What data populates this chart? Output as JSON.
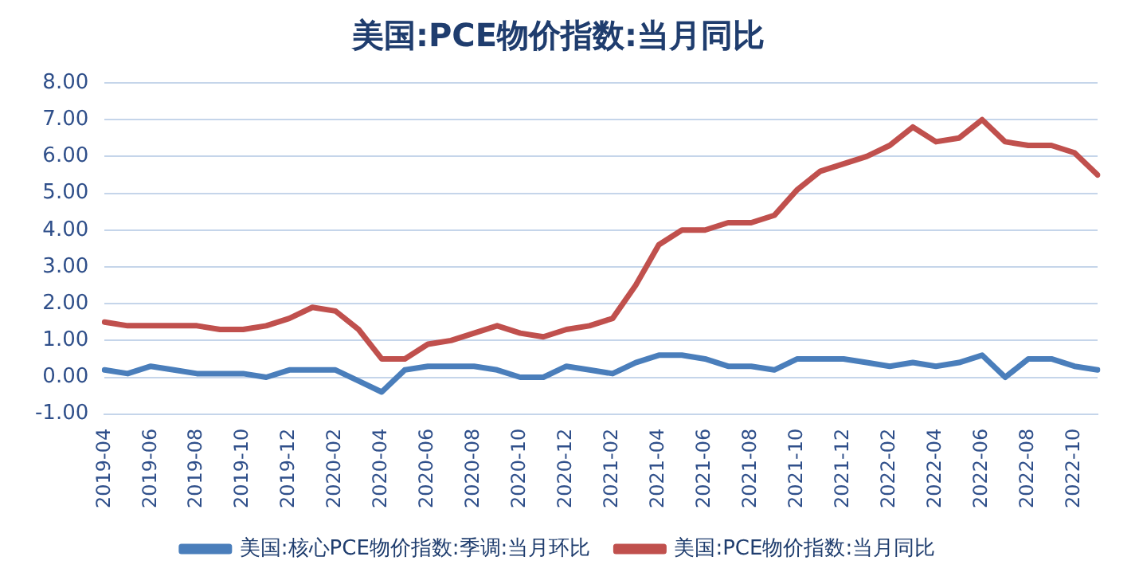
{
  "chart_data": {
    "type": "line",
    "title": "美国:PCE物价指数:当月同比",
    "categories": [
      "2019-04",
      null,
      "2019-06",
      null,
      "2019-08",
      null,
      "2019-10",
      null,
      "2019-12",
      null,
      "2020-02",
      null,
      "2020-04",
      null,
      "2020-06",
      null,
      "2020-08",
      null,
      "2020-10",
      null,
      "2020-12",
      null,
      "2021-02",
      null,
      "2021-04",
      null,
      "2021-06",
      null,
      "2021-08",
      null,
      "2021-10",
      null,
      "2021-12",
      null,
      "2022-02",
      null,
      "2022-04",
      null,
      "2022-06",
      null,
      "2022-08",
      null,
      "2022-10",
      null
    ],
    "series": [
      {
        "name": "美国:核心PCE物价指数:季调:当月环比",
        "color": "#4a7ebb",
        "values": [
          0.2,
          0.1,
          0.3,
          0.2,
          0.1,
          0.1,
          0.1,
          0.0,
          0.2,
          0.2,
          0.2,
          -0.1,
          -0.4,
          0.2,
          0.3,
          0.3,
          0.3,
          0.2,
          0.0,
          0.0,
          0.3,
          0.2,
          0.1,
          0.4,
          0.6,
          0.6,
          0.5,
          0.3,
          0.3,
          0.2,
          0.5,
          0.5,
          0.5,
          0.4,
          0.3,
          0.4,
          0.3,
          0.4,
          0.6,
          0.0,
          0.5,
          0.5,
          0.3,
          0.2
        ]
      },
      {
        "name": "美国:PCE物价指数:当月同比",
        "color": "#c0504d",
        "values": [
          1.5,
          1.4,
          1.4,
          1.4,
          1.4,
          1.3,
          1.3,
          1.4,
          1.6,
          1.9,
          1.8,
          1.3,
          0.5,
          0.5,
          0.9,
          1.0,
          1.2,
          1.4,
          1.2,
          1.1,
          1.3,
          1.4,
          1.6,
          2.5,
          3.6,
          4.0,
          4.0,
          4.2,
          4.2,
          4.4,
          5.1,
          5.6,
          5.8,
          6.0,
          6.3,
          6.8,
          6.4,
          6.5,
          7.0,
          6.4,
          6.3,
          6.3,
          6.1,
          5.5
        ]
      }
    ],
    "ylim": [
      -1,
      8
    ],
    "yticks": [
      {
        "value": -1,
        "label": "-1.00"
      },
      {
        "value": 0,
        "label": "0.00"
      },
      {
        "value": 1,
        "label": "1.00"
      },
      {
        "value": 2,
        "label": "2.00"
      },
      {
        "value": 3,
        "label": "3.00"
      },
      {
        "value": 4,
        "label": "4.00"
      },
      {
        "value": 5,
        "label": "5.00"
      },
      {
        "value": 6,
        "label": "6.00"
      },
      {
        "value": 7,
        "label": "7.00"
      },
      {
        "value": 8,
        "label": "8.00"
      }
    ],
    "grid": "y",
    "legend": "bottom",
    "marker": "none",
    "line_style": "solid"
  }
}
